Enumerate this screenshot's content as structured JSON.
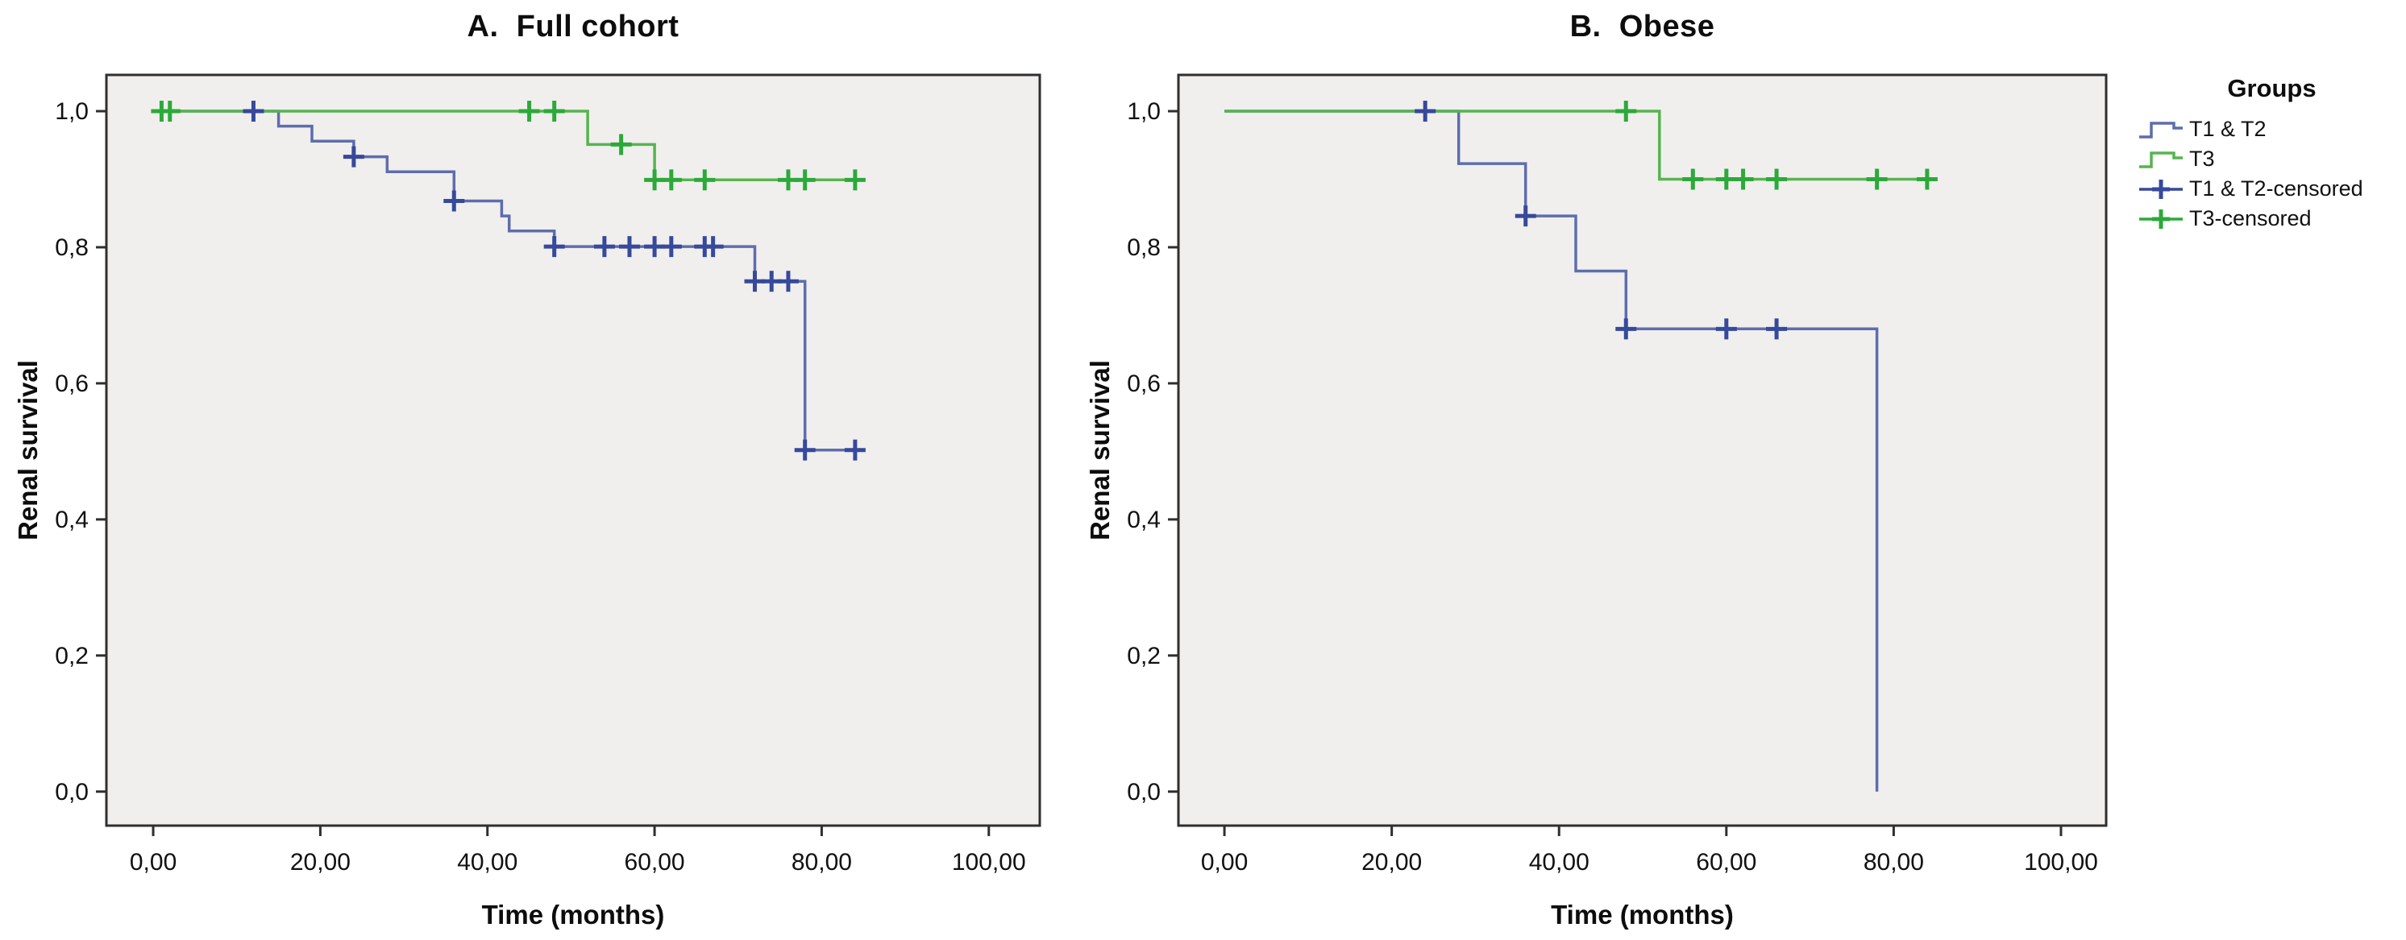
{
  "figure": {
    "background": "#ffffff",
    "plot_background": "#f0efee",
    "frame_color": "#2f2f2f",
    "legend": {
      "title": "Groups",
      "items": [
        {
          "label": "T1 & T2",
          "color": "#5e6dac",
          "glyph": "step"
        },
        {
          "label": "T3",
          "color": "#57b44f",
          "glyph": "step"
        },
        {
          "label": "T1 & T2-censored",
          "color": "#36499b",
          "glyph": "censor"
        },
        {
          "label": "T3-censored",
          "color": "#2ca939",
          "glyph": "censor"
        }
      ]
    }
  },
  "chart_data": [
    {
      "type": "line",
      "subtype": "kaplan-meier-step",
      "title": "A.  Full cohort",
      "xlabel": "Time (months)",
      "ylabel": "Renal survival",
      "xlim": [
        -5.6,
        106.1
      ],
      "ylim": [
        -0.05,
        1.0533
      ],
      "grid": false,
      "legend_position": "right-of-figure",
      "xticks": {
        "values": [
          0,
          20,
          40,
          60,
          80,
          100
        ],
        "labels": [
          "0,00",
          "20,00",
          "40,00",
          "60,00",
          "80,00",
          "100,00"
        ]
      },
      "yticks": {
        "values": [
          0.0,
          0.2,
          0.4,
          0.6,
          0.8,
          1.0
        ],
        "labels": [
          "0,0",
          "0,2",
          "0,4",
          "0,6",
          "0,8",
          "1,0"
        ]
      },
      "series": [
        {
          "name": "T1 & T2",
          "color": "#5e6dac",
          "censor_color": "#36499b",
          "start_survival": 1.0,
          "events": [
            [
              15,
              0.978
            ],
            [
              19,
              0.956
            ],
            [
              24,
              0.933
            ],
            [
              28,
              0.911
            ],
            [
              36,
              0.868
            ],
            [
              41.7,
              0.846
            ],
            [
              42.6,
              0.824
            ],
            [
              48,
              0.801
            ],
            [
              72,
              0.75
            ],
            [
              78,
              0.502
            ]
          ],
          "end_time": 85,
          "censored": [
            [
              12,
              1.0
            ],
            [
              24,
              0.933
            ],
            [
              36,
              0.868
            ],
            [
              48,
              0.801
            ],
            [
              54,
              0.801
            ],
            [
              57,
              0.801
            ],
            [
              60,
              0.801
            ],
            [
              62,
              0.801
            ],
            [
              66,
              0.801
            ],
            [
              67,
              0.801
            ],
            [
              72,
              0.75
            ],
            [
              74,
              0.75
            ],
            [
              76,
              0.75
            ],
            [
              78,
              0.502
            ],
            [
              84,
              0.502
            ]
          ]
        },
        {
          "name": "T3",
          "color": "#57b44f",
          "censor_color": "#2ca939",
          "start_survival": 1.0,
          "events": [
            [
              52,
              0.951
            ],
            [
              60,
              0.899
            ]
          ],
          "end_time": 85,
          "censored": [
            [
              1,
              1.0
            ],
            [
              2,
              1.0
            ],
            [
              45,
              1.0
            ],
            [
              48,
              1.0
            ],
            [
              56,
              0.951
            ],
            [
              60,
              0.899
            ],
            [
              62,
              0.899
            ],
            [
              66,
              0.899
            ],
            [
              76,
              0.899
            ],
            [
              78,
              0.899
            ],
            [
              84,
              0.899
            ]
          ]
        }
      ]
    },
    {
      "type": "line",
      "subtype": "kaplan-meier-step",
      "title": "B.  Obese",
      "xlabel": "Time (months)",
      "ylabel": "Renal survival",
      "xlim": [
        -5.5,
        105.4
      ],
      "ylim": [
        -0.05,
        1.0533
      ],
      "grid": false,
      "legend_position": "right-of-figure",
      "xticks": {
        "values": [
          0,
          20,
          40,
          60,
          80,
          100
        ],
        "labels": [
          "0,00",
          "20,00",
          "40,00",
          "60,00",
          "80,00",
          "100,00"
        ]
      },
      "yticks": {
        "values": [
          0.0,
          0.2,
          0.4,
          0.6,
          0.8,
          1.0
        ],
        "labels": [
          "0,0",
          "0,2",
          "0,4",
          "0,6",
          "0,8",
          "1,0"
        ]
      },
      "series": [
        {
          "name": "T1 & T2",
          "color": "#5e6dac",
          "censor_color": "#36499b",
          "start_survival": 1.0,
          "events": [
            [
              28,
              0.923
            ],
            [
              36,
              0.846
            ],
            [
              42,
              0.765
            ],
            [
              48,
              0.68
            ],
            [
              78,
              0.0
            ]
          ],
          "end_time": 78,
          "censored": [
            [
              24,
              1.0
            ],
            [
              36,
              0.846
            ],
            [
              48,
              0.68
            ],
            [
              60,
              0.68
            ],
            [
              66,
              0.68
            ]
          ]
        },
        {
          "name": "T3",
          "color": "#57b44f",
          "censor_color": "#2ca939",
          "start_survival": 1.0,
          "events": [
            [
              52,
              0.9
            ]
          ],
          "end_time": 85,
          "censored": [
            [
              48,
              1.0
            ],
            [
              56,
              0.9
            ],
            [
              60,
              0.9
            ],
            [
              62,
              0.9
            ],
            [
              66,
              0.9
            ],
            [
              78,
              0.9
            ],
            [
              84,
              0.9
            ]
          ]
        }
      ]
    }
  ]
}
